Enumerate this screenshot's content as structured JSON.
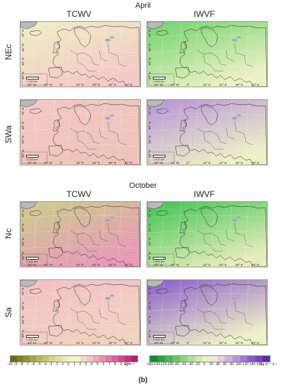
{
  "sections": [
    {
      "title": "April",
      "col_tcwv": "TCWV",
      "col_iwvf": "IWVF",
      "rows": [
        "NEc",
        "SWa"
      ]
    },
    {
      "title": "October",
      "col_tcwv": "TCWV",
      "col_iwvf": "IWVF",
      "rows": [
        "Nc",
        "Sa"
      ]
    }
  ],
  "lon_ticks": [
    "20° W",
    "10° W",
    "0°",
    "10° E",
    "20° E",
    "30° E",
    "40° E"
  ],
  "lat_ticks": [
    "70° N",
    "60° N",
    "50° N",
    "40° N"
  ],
  "scale_label": "1 000 km",
  "tcwv_colorbar": {
    "ticks": [
      "-10",
      "-9",
      "-8",
      "-7",
      "-6",
      "-5",
      "-4",
      "-3",
      "-2",
      "-1",
      "0",
      "1",
      "2",
      "3",
      "4",
      "5",
      "6",
      "7",
      "8",
      "9",
      "10"
    ],
    "unit": "kg m⁻²",
    "colors": [
      "#6b6a1a",
      "#7f7e25",
      "#939233",
      "#a6a544",
      "#b7b657",
      "#c7c56b",
      "#d5d382",
      "#e1df99",
      "#ecebb0",
      "#f5f3c7",
      "#f7f1c9",
      "#f6dcc6",
      "#f3c4c0",
      "#efaab8",
      "#ea90af",
      "#e478a6",
      "#dd5f9d",
      "#d44792",
      "#c93186",
      "#bd1d79"
    ]
  },
  "iwvf_colorbar": {
    "ticks": [
      "-160",
      "-140",
      "-120",
      "-100",
      "-80",
      "-60",
      "-40",
      "-20",
      "0",
      "20",
      "40",
      "60",
      "80",
      "100",
      "120",
      "140",
      "160"
    ],
    "unit": "kg m⁻¹ s⁻¹",
    "colors": [
      "#0f8f2a",
      "#2aa33a",
      "#49b54e",
      "#6bc564",
      "#8fd37c",
      "#b2df96",
      "#d2e8b0",
      "#ebf0c9",
      "#f3e9d0",
      "#e2cfe0",
      "#cdb2e0",
      "#b794dc",
      "#a177d5",
      "#8b5bcb",
      "#7542bf",
      "#5f2cae"
    ]
  },
  "panel_colors": {
    "tcwv_apr_nec": [
      "#eef0c4",
      "#f4c9c6"
    ],
    "iwvf_apr_nec": [
      "#6ed36a",
      "#eef1c6"
    ],
    "tcwv_apr_swa": [
      "#f4c8c5",
      "#eec4b9"
    ],
    "iwvf_apr_swa": [
      "#b592d8",
      "#eef1c6"
    ],
    "tcwv_oct_nc": [
      "#cccf8a",
      "#e89ab9"
    ],
    "iwvf_oct_nc": [
      "#3ec44f",
      "#e6ecbc"
    ],
    "tcwv_oct_sa": [
      "#f3c0c4",
      "#f0d3c0"
    ],
    "iwvf_oct_sa": [
      "#8b5bcb",
      "#eef1c6"
    ]
  },
  "figure_label": "(b)"
}
